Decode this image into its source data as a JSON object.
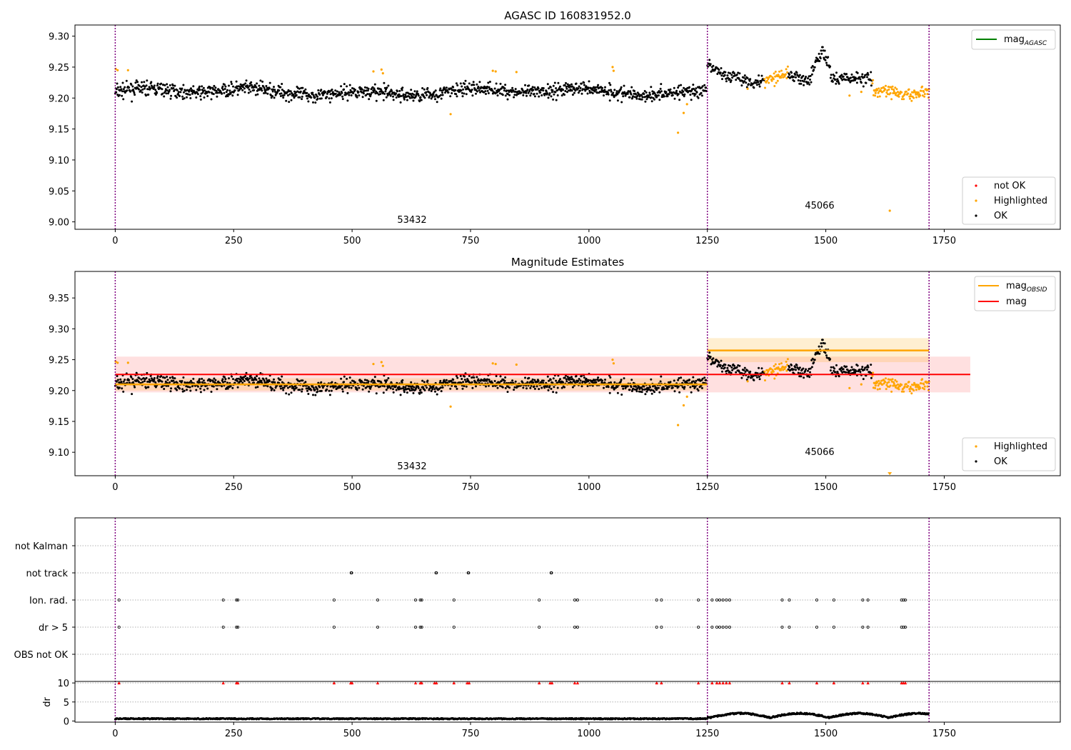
{
  "chart_data": [
    {
      "type": "scatter",
      "title": "AGASC ID 160831952.0",
      "xlim": [
        -85,
        1995
      ],
      "ylim": [
        8.988,
        9.318
      ],
      "xticks": [
        0,
        250,
        500,
        750,
        1000,
        1250,
        1500,
        1750
      ],
      "yticks": [
        "9.00",
        "9.05",
        "9.10",
        "9.15",
        "9.20",
        "9.25",
        "9.30"
      ],
      "obsid_boundaries": [
        0,
        1250,
        1718
      ],
      "obsid_labels": [
        {
          "text": "53432",
          "x": 625,
          "y": 9.0
        },
        {
          "text": "45066",
          "x": 1484,
          "y": 9.023
        }
      ],
      "lines_legend": {
        "position": "top-right",
        "entries": [
          {
            "label": "mag",
            "sub": "AGASC",
            "color": "#008000"
          }
        ]
      },
      "points_legend": {
        "position": "lower-right",
        "entries": [
          {
            "label": "not OK",
            "color": "#ff0000"
          },
          {
            "label": "Highlighted",
            "color": "#ffa500"
          },
          {
            "label": "OK",
            "color": "#000000"
          }
        ]
      },
      "highlighted_points": [
        {
          "x": 1,
          "y": 9.247
        },
        {
          "x": 5,
          "y": 9.245
        },
        {
          "x": 27,
          "y": 9.245
        },
        {
          "x": 545,
          "y": 9.243
        },
        {
          "x": 562,
          "y": 9.246
        },
        {
          "x": 565,
          "y": 9.24
        },
        {
          "x": 708,
          "y": 9.174
        },
        {
          "x": 797,
          "y": 9.244
        },
        {
          "x": 803,
          "y": 9.243
        },
        {
          "x": 847,
          "y": 9.242
        },
        {
          "x": 1050,
          "y": 9.25
        },
        {
          "x": 1052,
          "y": 9.244
        },
        {
          "x": 1188,
          "y": 9.144
        },
        {
          "x": 1200,
          "y": 9.176
        },
        {
          "x": 1207,
          "y": 9.19
        },
        {
          "x": 1335,
          "y": 9.215
        },
        {
          "x": 1550,
          "y": 9.204
        },
        {
          "x": 1575,
          "y": 9.21
        },
        {
          "x": 1605,
          "y": 9.208
        },
        {
          "x": 1635,
          "y": 9.018
        }
      ],
      "segments": [
        {
          "x0": 0,
          "x1": 1248,
          "n": 1250,
          "mean": 9.21,
          "spread": 0.011
        },
        {
          "x0": 1250,
          "x1": 1718,
          "n": 420,
          "mean": 9.24,
          "spread": 0.01
        }
      ]
    },
    {
      "type": "scatter",
      "title": "Magnitude Estimates",
      "xlim": [
        -85,
        1995
      ],
      "ylim": [
        9.062,
        9.393
      ],
      "xticks": [
        0,
        250,
        500,
        750,
        1000,
        1250,
        1500,
        1750
      ],
      "yticks": [
        "9.10",
        "9.15",
        "9.20",
        "9.25",
        "9.30",
        "9.35"
      ],
      "obsid_boundaries": [
        0,
        1250,
        1718
      ],
      "obsid_labels": [
        {
          "text": "53432",
          "x": 625,
          "y": 9.07
        },
        {
          "text": "45066",
          "x": 1484,
          "y": 9.094
        }
      ],
      "mag": {
        "value": 9.226,
        "band": [
          9.197,
          9.255
        ],
        "x": [
          0,
          1805
        ],
        "color": "#ff0000"
      },
      "mag_obsid": [
        {
          "x": [
            0,
            1250
          ],
          "value": 9.21,
          "band": [
            9.2,
            9.22
          ]
        },
        {
          "x": [
            1250,
            1718
          ],
          "value": 9.265,
          "band": [
            9.246,
            9.285
          ]
        }
      ],
      "lines_legend": {
        "position": "top-right",
        "entries": [
          {
            "label": "mag",
            "sub": "OBSID",
            "color": "#ffa500"
          },
          {
            "label": "mag",
            "sub": "",
            "color": "#ff0000"
          }
        ]
      },
      "points_legend": {
        "position": "lower-right",
        "entries": [
          {
            "label": "Highlighted",
            "color": "#ffa500"
          },
          {
            "label": "OK",
            "color": "#000000"
          }
        ]
      }
    },
    {
      "type": "scatter",
      "title": "",
      "xlim": [
        -85,
        1995
      ],
      "flag_rows": [
        "not Kalman",
        "not track",
        "Ion. rad.",
        "dr > 5",
        "OBS not OK"
      ],
      "flag_points": {
        "not track": [
          498,
          499,
          677,
          678,
          745,
          746,
          920,
          921
        ],
        "Ion. rad.": [
          8,
          228,
          256,
          259,
          462,
          554,
          634,
          644,
          647,
          715,
          895,
          970,
          976,
          1143,
          1153,
          1231,
          1260,
          1270,
          1276,
          1283,
          1290,
          1297,
          1408,
          1423,
          1481,
          1517,
          1578,
          1589,
          1660,
          1664,
          1668
        ],
        "dr > 5": [
          8,
          228,
          256,
          259,
          462,
          554,
          634,
          644,
          647,
          715,
          895,
          970,
          976,
          1143,
          1153,
          1231,
          1260,
          1270,
          1276,
          1283,
          1290,
          1297,
          1408,
          1423,
          1481,
          1517,
          1578,
          1589,
          1660,
          1664,
          1668
        ]
      },
      "dr": {
        "ylabel": "dr",
        "yticks": [
          "0",
          "5",
          "10"
        ],
        "ylim": [
          -0.3,
          10.4
        ],
        "clipped_x": [
          8,
          228,
          256,
          259,
          462,
          497,
          500,
          554,
          634,
          644,
          647,
          674,
          678,
          715,
          743,
          747,
          895,
          918,
          922,
          970,
          976,
          1143,
          1153,
          1231,
          1260,
          1270,
          1276,
          1283,
          1290,
          1297,
          1408,
          1423,
          1481,
          1517,
          1578,
          1589,
          1660,
          1664,
          1668
        ]
      }
    }
  ]
}
